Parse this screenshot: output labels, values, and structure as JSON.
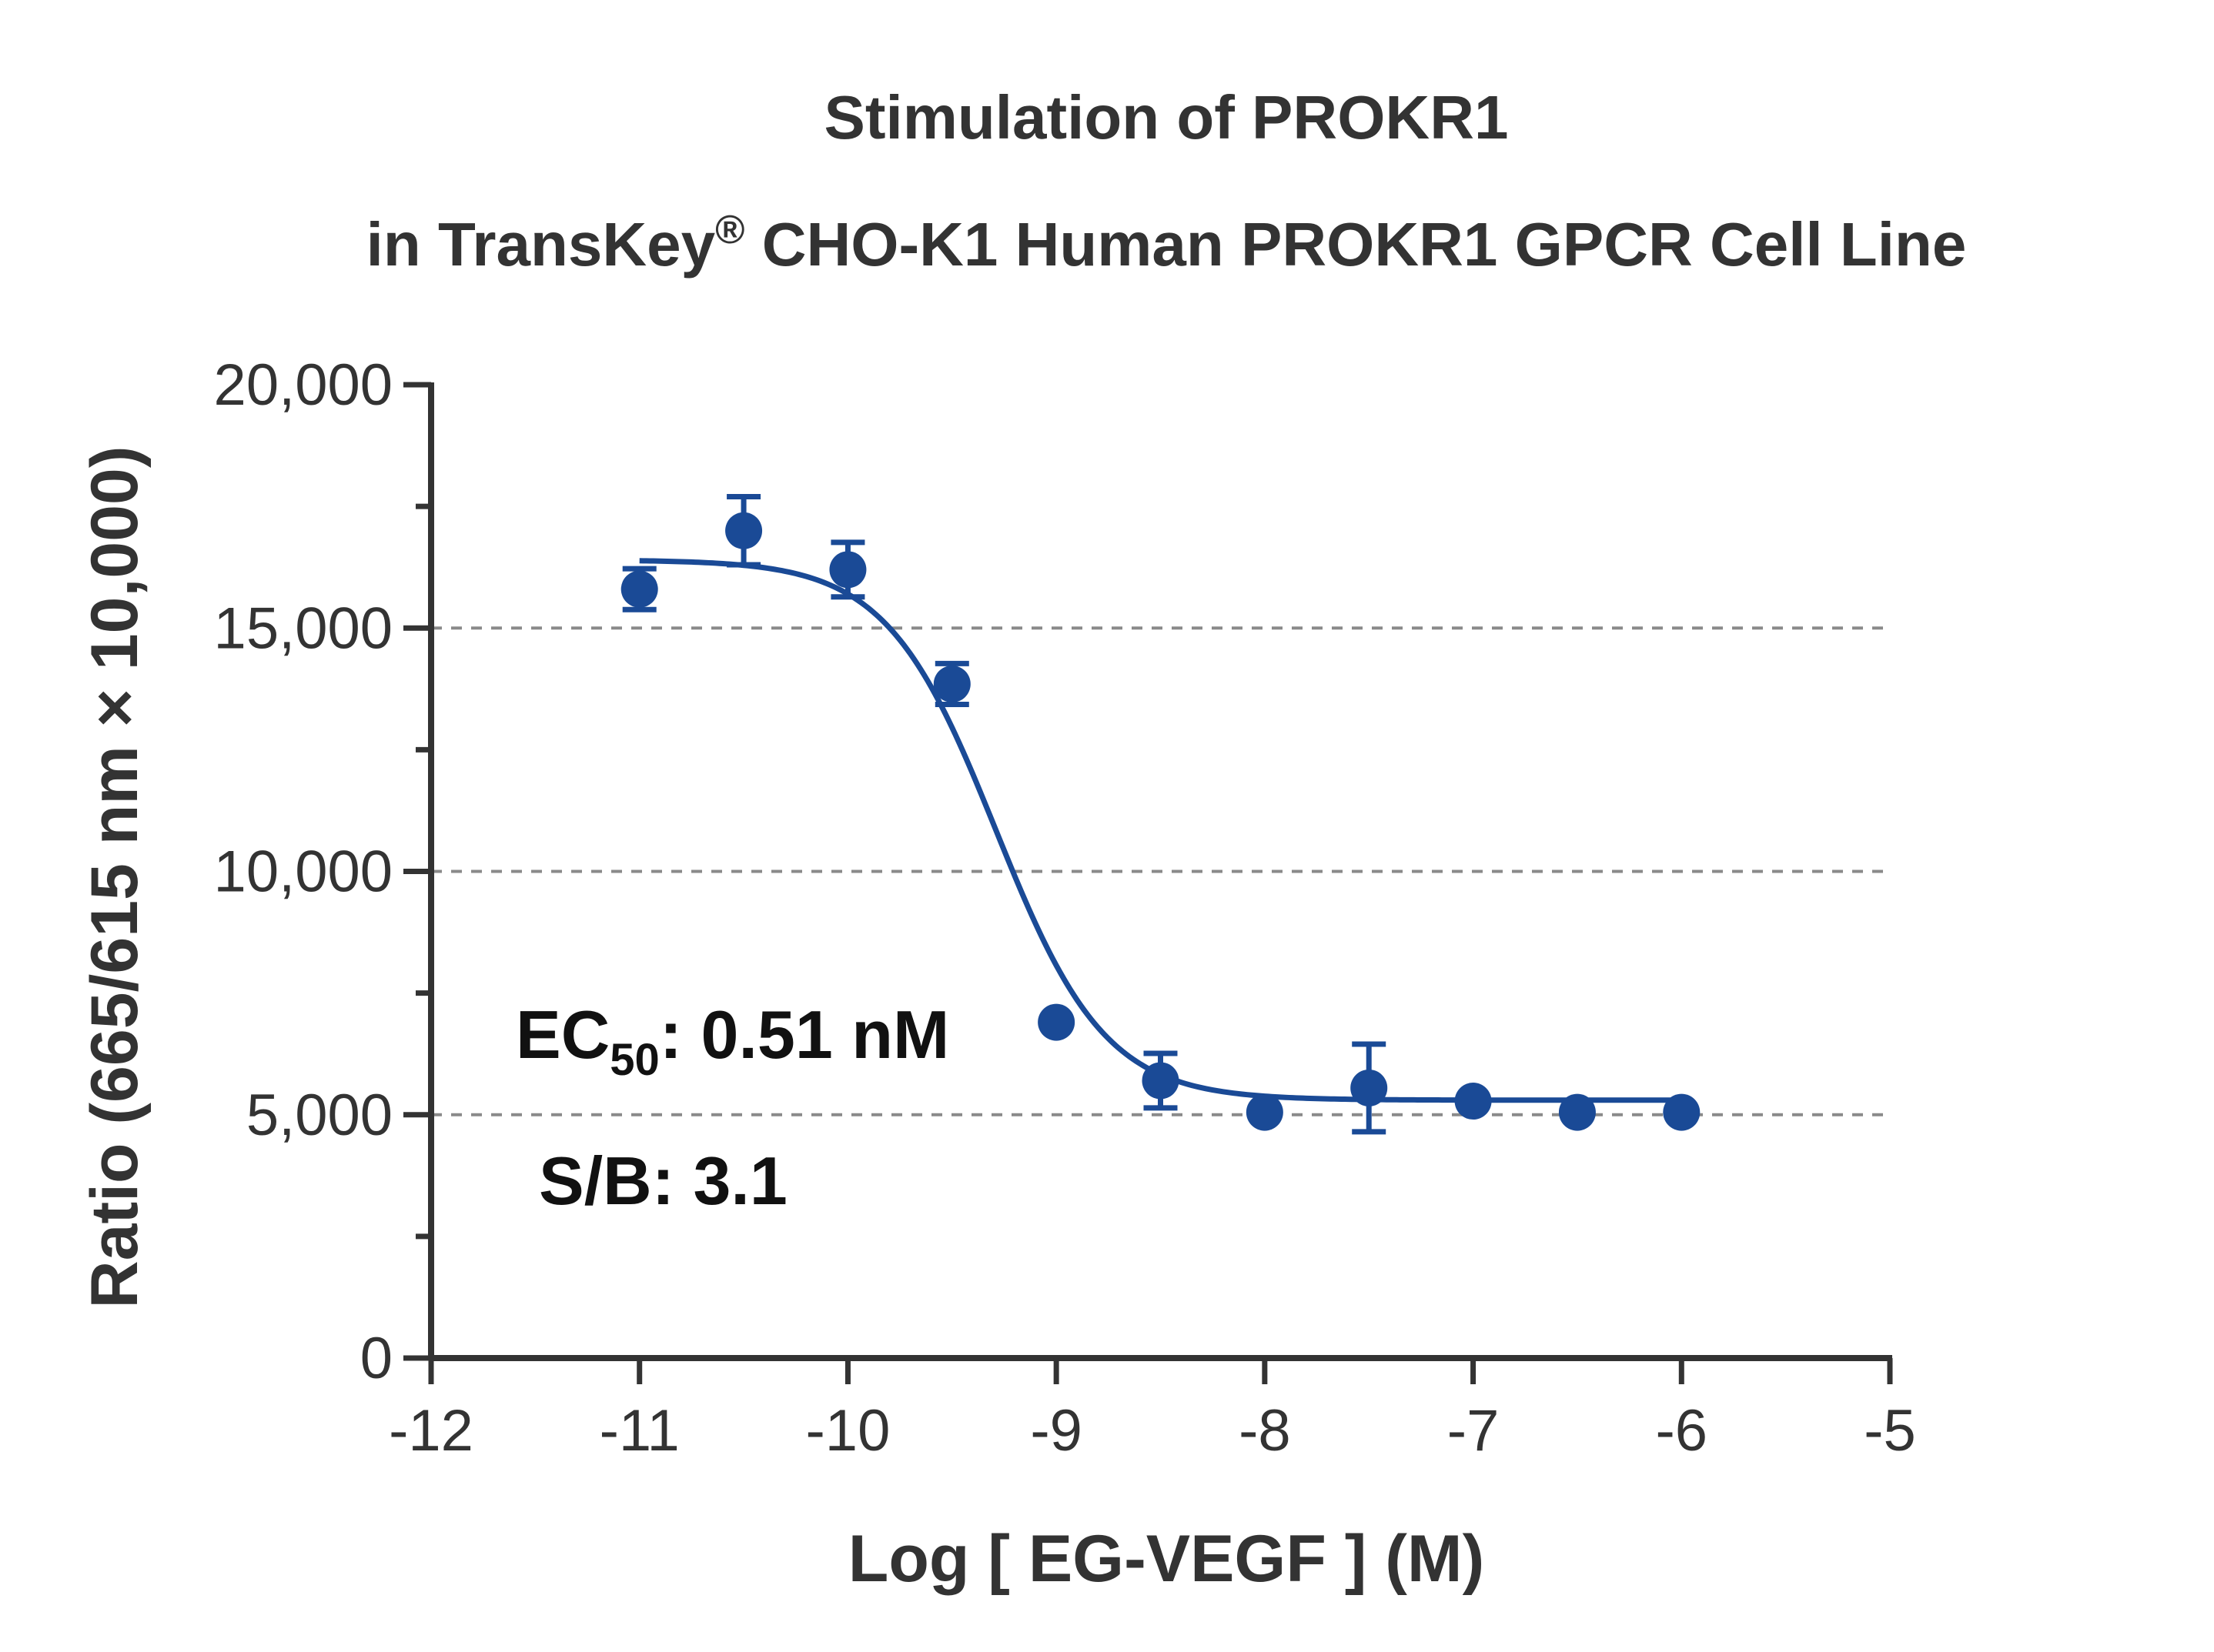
{
  "chart_data": {
    "type": "scatter",
    "title_line1": "Stimulation of  PROKR1",
    "title_line2_pre": "in TransKey",
    "title_line2_sup": "®",
    "title_line2_post": " CHO-K1 Human PROKR1 GPCR Cell Line",
    "xlabel": "Log [ EG-VEGF ]  (M)",
    "ylabel": "Ratio (665/615 nm × 10,000)",
    "xlim": [
      -12,
      -5
    ],
    "ylim": [
      0,
      20000
    ],
    "x_ticks": [
      -12,
      -11,
      -10,
      -9,
      -8,
      -7,
      -6,
      -5
    ],
    "x_tick_labels": [
      "-12",
      "-11",
      "-10",
      "-9",
      "-8",
      "-7",
      "-6",
      "-5"
    ],
    "y_ticks": [
      0,
      5000,
      10000,
      15000,
      20000
    ],
    "y_tick_labels": [
      "0",
      "5,000",
      "10,000",
      "15,000",
      "20,000"
    ],
    "y_minor_ticks": [
      2500,
      7500,
      12500,
      17500
    ],
    "gridlines_y": [
      5000,
      10000,
      15000
    ],
    "series": [
      {
        "color": "#1a4a96",
        "points": [
          {
            "x": -11.0,
            "y": 15800,
            "err": 420
          },
          {
            "x": -10.5,
            "y": 17000,
            "err": 700
          },
          {
            "x": -10.0,
            "y": 16200,
            "err": 560
          },
          {
            "x": -9.5,
            "y": 13850,
            "err": 420
          },
          {
            "x": -9.0,
            "y": 6900,
            "err": 0
          },
          {
            "x": -8.5,
            "y": 5700,
            "err": 560
          },
          {
            "x": -8.0,
            "y": 5050,
            "err": 0
          },
          {
            "x": -7.5,
            "y": 5550,
            "err": 900
          },
          {
            "x": -7.0,
            "y": 5280,
            "err": 0
          },
          {
            "x": -6.5,
            "y": 5050,
            "err": 0
          },
          {
            "x": -6.0,
            "y": 5050,
            "err": 0
          }
        ],
        "fit": {
          "model": "4PL",
          "top": 16400,
          "bottom": 5300,
          "log_ec50": -9.29,
          "hill": 1.65,
          "x_start": -11.0,
          "x_end": -6.0
        }
      }
    ],
    "annotations": {
      "ec50_prefix": "EC",
      "ec50_sub": "50",
      "ec50_value": ": 0.51 nM",
      "sb": "S/B: 3.1"
    }
  }
}
